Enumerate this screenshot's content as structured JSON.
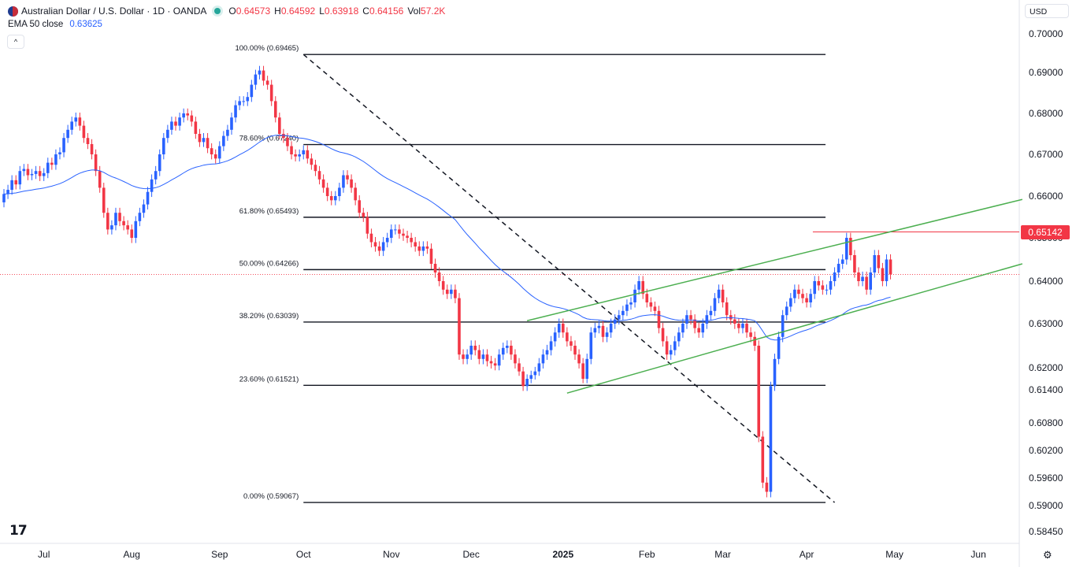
{
  "header": {
    "symbol": "Australian Dollar / U.S. Dollar · 1D · OANDA",
    "open_label": "O",
    "open": "0.64573",
    "high_label": "H",
    "high": "0.64592",
    "low_label": "L",
    "low": "0.63918",
    "close_label": "C",
    "close": "0.64156",
    "vol_label": "Vol",
    "vol": "57.2K",
    "ema_label": "EMA 50 close",
    "ema_value": "0.63625",
    "collapse_glyph": "^"
  },
  "currency": "USD",
  "logo": "17",
  "settings_glyph": "⚙",
  "price_tag": "0.65142",
  "colors": {
    "up": "#2962ff",
    "down": "#f23645",
    "ema": "#2962ff",
    "channel": "#4caf50",
    "fib": "#131722",
    "hline": "#f23645"
  },
  "chart_data": {
    "type": "candlestick",
    "title": "Australian Dollar / U.S. Dollar · 1D · OANDA",
    "y_ticks": [
      0.7,
      0.69,
      0.68,
      0.67,
      0.66,
      0.65,
      0.64,
      0.63,
      0.62,
      0.614,
      0.608,
      0.602,
      0.596,
      0.59,
      0.5845
    ],
    "y_tick_labels": [
      "0.70000",
      "0.69000",
      "0.68000",
      "0.67000",
      "0.66000",
      "0.65000",
      "0.64000",
      "0.63000",
      "0.62000",
      "0.61400",
      "0.60800",
      "0.60200",
      "0.59600",
      "0.59000",
      "0.58450"
    ],
    "x_labels": [
      {
        "text": "Jul",
        "idx": 10,
        "bold": false
      },
      {
        "text": "Aug",
        "idx": 32,
        "bold": false
      },
      {
        "text": "Sep",
        "idx": 54,
        "bold": false
      },
      {
        "text": "Oct",
        "idx": 75,
        "bold": false
      },
      {
        "text": "Nov",
        "idx": 97,
        "bold": false
      },
      {
        "text": "Dec",
        "idx": 117,
        "bold": false
      },
      {
        "text": "2025",
        "idx": 140,
        "bold": true
      },
      {
        "text": "Feb",
        "idx": 161,
        "bold": false
      },
      {
        "text": "Mar",
        "idx": 180,
        "bold": false
      },
      {
        "text": "Apr",
        "idx": 201,
        "bold": false
      },
      {
        "text": "May",
        "idx": 223,
        "bold": false
      },
      {
        "text": "Jun",
        "idx": 244,
        "bold": false
      }
    ],
    "closes": [
      0.6605,
      0.6615,
      0.6638,
      0.6628,
      0.666,
      0.6665,
      0.665,
      0.6653,
      0.666,
      0.6648,
      0.6655,
      0.668,
      0.6675,
      0.67,
      0.6705,
      0.674,
      0.676,
      0.678,
      0.679,
      0.677,
      0.674,
      0.6725,
      0.67,
      0.666,
      0.662,
      0.656,
      0.652,
      0.653,
      0.656,
      0.654,
      0.653,
      0.652,
      0.65,
      0.654,
      0.656,
      0.658,
      0.661,
      0.664,
      0.666,
      0.67,
      0.674,
      0.676,
      0.678,
      0.677,
      0.679,
      0.68,
      0.6795,
      0.678,
      0.675,
      0.673,
      0.674,
      0.6715,
      0.67,
      0.669,
      0.672,
      0.6745,
      0.676,
      0.679,
      0.682,
      0.683,
      0.683,
      0.684,
      0.687,
      0.6895,
      0.6905,
      0.688,
      0.687,
      0.683,
      0.679,
      0.675,
      0.674,
      0.672,
      0.67,
      0.6695,
      0.67,
      0.671,
      0.669,
      0.6675,
      0.666,
      0.664,
      0.662,
      0.66,
      0.659,
      0.66,
      0.662,
      0.665,
      0.664,
      0.662,
      0.659,
      0.656,
      0.655,
      0.651,
      0.649,
      0.648,
      0.647,
      0.649,
      0.65,
      0.652,
      0.652,
      0.651,
      0.6505,
      0.65,
      0.649,
      0.648,
      0.647,
      0.648,
      0.6475,
      0.644,
      0.642,
      0.64,
      0.638,
      0.637,
      0.638,
      0.636,
      0.623,
      0.622,
      0.623,
      0.625,
      0.624,
      0.622,
      0.623,
      0.6215,
      0.621,
      0.6205,
      0.623,
      0.6245,
      0.625,
      0.623,
      0.621,
      0.619,
      0.615,
      0.617,
      0.618,
      0.619,
      0.621,
      0.623,
      0.624,
      0.626,
      0.628,
      0.63,
      0.628,
      0.626,
      0.625,
      0.623,
      0.621,
      0.617,
      0.622,
      0.628,
      0.629,
      0.6295,
      0.627,
      0.628,
      0.63,
      0.631,
      0.632,
      0.633,
      0.6345,
      0.635,
      0.638,
      0.64,
      0.637,
      0.635,
      0.634,
      0.633,
      0.629,
      0.626,
      0.623,
      0.624,
      0.626,
      0.628,
      0.63,
      0.632,
      0.631,
      0.629,
      0.628,
      0.63,
      0.632,
      0.633,
      0.636,
      0.638,
      0.635,
      0.632,
      0.631,
      0.63,
      0.629,
      0.63,
      0.628,
      0.627,
      0.625,
      0.605,
      0.595,
      0.593,
      0.615,
      0.622,
      0.627,
      0.632,
      0.634,
      0.636,
      0.638,
      0.637,
      0.636,
      0.635,
      0.637,
      0.64,
      0.639,
      0.638,
      0.638,
      0.64,
      0.642,
      0.644,
      0.645,
      0.65,
      0.646,
      0.642,
      0.64,
      0.641,
      0.638,
      0.642,
      0.646,
      0.643,
      0.64,
      0.645,
      0.6416
    ],
    "ema50_last": 0.63625,
    "fib_levels": [
      {
        "pct": "100.00%",
        "price": 0.69465,
        "label": "100.00% (0.69465)"
      },
      {
        "pct": "78.60%",
        "price": 0.6724,
        "label": "78.60% (0.67240)"
      },
      {
        "pct": "61.80%",
        "price": 0.65493,
        "label": "61.80% (0.65493)"
      },
      {
        "pct": "50.00%",
        "price": 0.64266,
        "label": "50.00% (0.64266)"
      },
      {
        "pct": "38.20%",
        "price": 0.63039,
        "label": "38.20% (0.63039)"
      },
      {
        "pct": "23.60%",
        "price": 0.61521,
        "label": "23.60% (0.61521)"
      },
      {
        "pct": "0.00%",
        "price": 0.59067,
        "label": "0.00% (0.59067)"
      }
    ],
    "horizontal_line": {
      "price": 0.65142,
      "from_idx": 213
    },
    "dashed_trend": {
      "from_idx": 75,
      "from_price": 0.69465,
      "to_idx": 208,
      "to_price": 0.59067
    },
    "channel_upper": {
      "from_idx": 131,
      "from_price": 0.6307,
      "to_idx": 255,
      "to_price": 0.6592
    },
    "channel_lower": {
      "from_idx": 141,
      "from_price": 0.6134,
      "to_idx": 255,
      "to_price": 0.644
    },
    "last_price": 0.64156
  }
}
